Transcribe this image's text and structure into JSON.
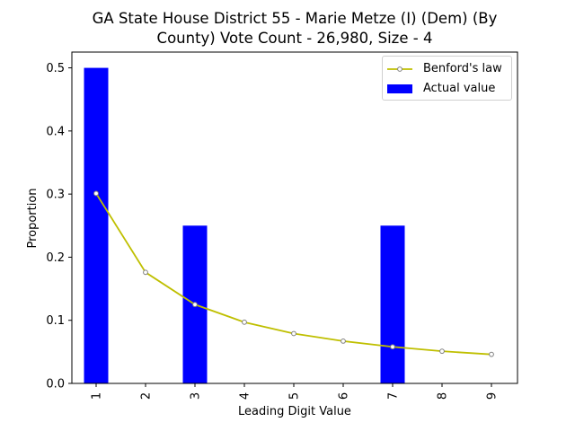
{
  "chart_data": {
    "type": "bar",
    "title": "GA State House District 55 - Marie Metze (I) (Dem) (By County) Vote Count - 26,980, Size - 4",
    "title_lines": [
      "GA State House District 55 - Marie Metze (I) (Dem) (By",
      "County) Vote Count - 26,980, Size - 4"
    ],
    "xlabel": "Leading Digit Value",
    "ylabel": "Proportion",
    "categories": [
      "1",
      "2",
      "3",
      "4",
      "5",
      "6",
      "7",
      "8",
      "9"
    ],
    "ylim": [
      0,
      0.525
    ],
    "yticks": [
      "0.0",
      "0.1",
      "0.2",
      "0.3",
      "0.4",
      "0.5"
    ],
    "legend_position": "top-right",
    "series": [
      {
        "name": "Actual value",
        "kind": "bar",
        "color": "#0000ff",
        "values": [
          0.5,
          0,
          0.25,
          0,
          0,
          0,
          0.25,
          0,
          0
        ]
      },
      {
        "name": "Benford's law",
        "kind": "line",
        "color": "#bfbf00",
        "marker_color": "#808080",
        "values": [
          0.301,
          0.176,
          0.125,
          0.097,
          0.079,
          0.067,
          0.058,
          0.051,
          0.046
        ]
      }
    ]
  }
}
